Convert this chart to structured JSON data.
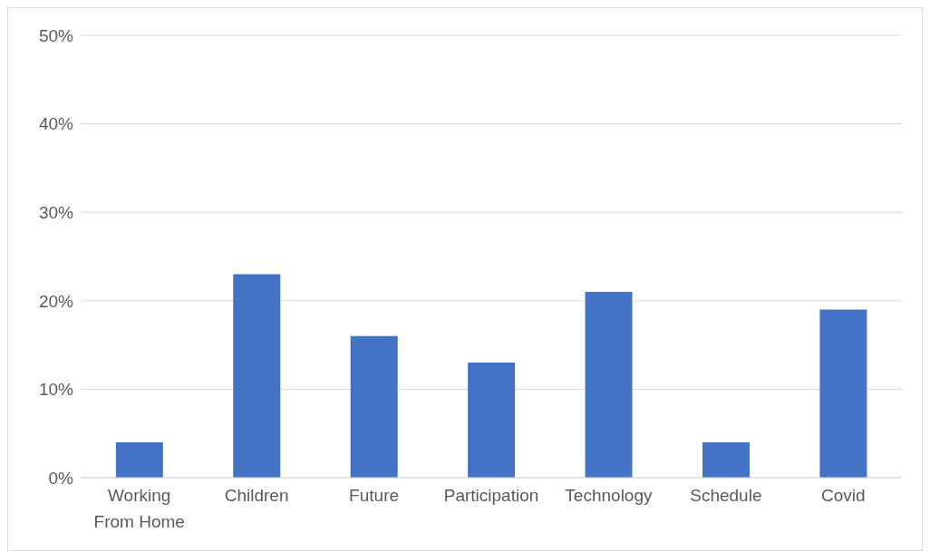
{
  "chart_data": {
    "type": "bar",
    "categories": [
      "Working From Home",
      "Children",
      "Future",
      "Participation",
      "Technology",
      "Schedule",
      "Covid"
    ],
    "values": [
      4,
      23,
      16,
      13,
      21,
      4,
      19
    ],
    "color": "#4472c4",
    "ylim": [
      0,
      50
    ],
    "yticks": [
      {
        "value": 0,
        "label": "0%"
      },
      {
        "value": 10,
        "label": "10%"
      },
      {
        "value": 20,
        "label": "20%"
      },
      {
        "value": 30,
        "label": "30%"
      },
      {
        "value": 40,
        "label": "40%"
      },
      {
        "value": 50,
        "label": "50%"
      }
    ],
    "grid": "y"
  }
}
